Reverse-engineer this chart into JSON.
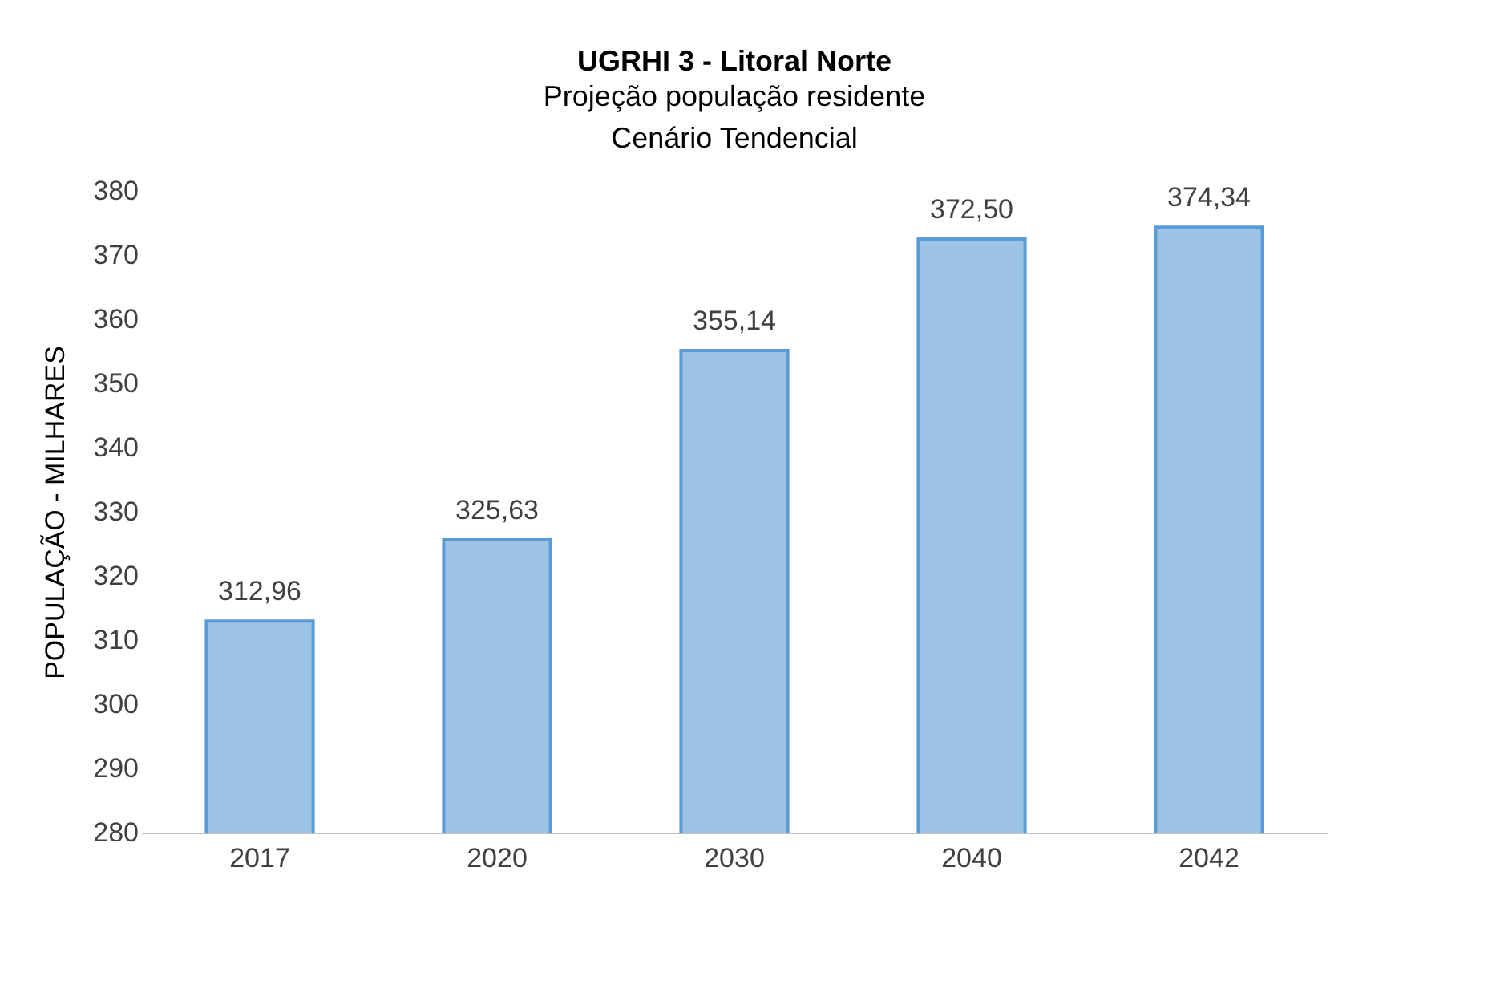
{
  "chart_data": {
    "type": "bar",
    "title": "UGRHI 3 - Litoral Norte",
    "subtitle": "Projeção população residente\nCenário Tendencial",
    "ylabel": "POPULAÇÃO - MILHARES",
    "categories": [
      "2017",
      "2020",
      "2030",
      "2040",
      "2042"
    ],
    "values": [
      312.96,
      325.63,
      355.14,
      372.5,
      374.34
    ],
    "value_labels": [
      "312,96",
      "325,63",
      "355,14",
      "372,50",
      "374,34"
    ],
    "color": "#9dc3e6",
    "ylim": [
      280,
      380
    ],
    "yticks": [
      280,
      290,
      300,
      310,
      320,
      330,
      340,
      350,
      360,
      370,
      380
    ],
    "grid": false
  }
}
